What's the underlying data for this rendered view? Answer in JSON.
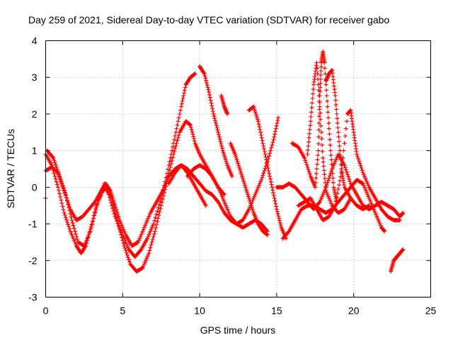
{
  "chart_data": {
    "type": "scatter",
    "title": "Day 259 of 2021, Sidereal Day-to-day VTEC variation (SDTVAR) for receiver gabo",
    "xlabel": "GPS time / hours",
    "ylabel": "SDTVAR / TECUs",
    "xlim": [
      0,
      25
    ],
    "ylim": [
      -3,
      4
    ],
    "xticks": [
      "0",
      "5",
      "10",
      "15",
      "20",
      "25"
    ],
    "yticks": [
      "-3",
      "-2",
      "-1",
      "0",
      "1",
      "2",
      "3",
      "4"
    ],
    "grid": true,
    "marker": "plus",
    "color": "#ff0000",
    "series": [
      {
        "name": "s1",
        "points": [
          [
            0.0,
            0.45
          ],
          [
            0.4,
            0.55
          ],
          [
            0.8,
            0.4
          ],
          [
            1.2,
            -0.1
          ],
          [
            1.6,
            -0.6
          ],
          [
            2.0,
            -0.9
          ],
          [
            2.4,
            -0.8
          ],
          [
            2.8,
            -0.6
          ],
          [
            3.2,
            -0.4
          ],
          [
            3.6,
            -0.1
          ],
          [
            3.9,
            0.1
          ],
          [
            4.2,
            -0.1
          ],
          [
            4.5,
            -0.5
          ],
          [
            4.8,
            -0.9
          ],
          [
            5.2,
            -1.3
          ],
          [
            5.6,
            -1.6
          ],
          [
            6.0,
            -1.5
          ],
          [
            6.4,
            -1.1
          ],
          [
            6.8,
            -0.7
          ],
          [
            7.2,
            -0.4
          ],
          [
            7.6,
            -0.1
          ],
          [
            8.0,
            0.3
          ],
          [
            8.4,
            0.5
          ],
          [
            8.8,
            0.6
          ],
          [
            9.2,
            0.4
          ],
          [
            9.6,
            0.1
          ],
          [
            10.0,
            -0.2
          ],
          [
            10.4,
            -0.5
          ]
        ]
      },
      {
        "name": "s2",
        "points": [
          [
            0.1,
            1.0
          ],
          [
            0.5,
            0.8
          ],
          [
            0.9,
            0.3
          ],
          [
            1.3,
            -0.2
          ],
          [
            1.7,
            -0.9
          ],
          [
            2.1,
            -1.5
          ],
          [
            2.5,
            -1.6
          ],
          [
            2.9,
            -1.2
          ],
          [
            3.3,
            -0.5
          ],
          [
            3.7,
            -0.1
          ],
          [
            4.0,
            0.0
          ],
          [
            4.3,
            -0.3
          ],
          [
            4.7,
            -1.0
          ],
          [
            5.1,
            -1.6
          ],
          [
            5.5,
            -2.1
          ],
          [
            5.9,
            -2.3
          ],
          [
            6.3,
            -2.2
          ],
          [
            6.7,
            -1.8
          ],
          [
            7.1,
            -1.2
          ],
          [
            7.5,
            -0.5
          ],
          [
            7.9,
            0.2
          ],
          [
            8.3,
            0.9
          ],
          [
            8.7,
            1.5
          ],
          [
            9.1,
            1.8
          ],
          [
            9.4,
            1.7
          ],
          [
            9.7,
            1.2
          ],
          [
            10.0,
            0.9
          ],
          [
            10.4,
            0.6
          ],
          [
            10.8,
            0.3
          ],
          [
            11.2,
            0.0
          ],
          [
            11.6,
            -0.2
          ]
        ]
      },
      {
        "name": "s3",
        "points": [
          [
            0.0,
            0.9
          ],
          [
            0.4,
            0.6
          ],
          [
            0.8,
            0.0
          ],
          [
            1.2,
            -0.7
          ],
          [
            1.6,
            -1.2
          ],
          [
            2.0,
            -1.6
          ],
          [
            2.3,
            -1.8
          ],
          [
            2.6,
            -1.6
          ],
          [
            3.0,
            -1.0
          ],
          [
            3.4,
            -0.4
          ],
          [
            3.8,
            0.1
          ],
          [
            4.1,
            -0.2
          ],
          [
            4.5,
            -0.8
          ],
          [
            5.0,
            -1.3
          ],
          [
            5.4,
            -1.7
          ],
          [
            5.8,
            -1.9
          ],
          [
            6.2,
            -1.7
          ],
          [
            6.6,
            -1.4
          ],
          [
            7.0,
            -1.0
          ],
          [
            7.5,
            -0.3
          ],
          [
            8.0,
            0.6
          ],
          [
            8.4,
            1.4
          ],
          [
            8.8,
            2.2
          ],
          [
            9.1,
            2.8
          ],
          [
            9.4,
            3.0
          ],
          [
            9.7,
            3.1
          ]
        ]
      },
      {
        "name": "s4",
        "points": [
          [
            8.0,
            0.1
          ],
          [
            8.4,
            0.4
          ],
          [
            8.8,
            0.6
          ],
          [
            9.2,
            0.5
          ],
          [
            9.6,
            0.3
          ],
          [
            10.0,
            0.1
          ],
          [
            10.4,
            -0.1
          ],
          [
            10.8,
            -0.2
          ],
          [
            11.2,
            -0.4
          ],
          [
            11.6,
            -0.7
          ],
          [
            12.0,
            -0.9
          ],
          [
            12.4,
            -1.0
          ],
          [
            12.8,
            -1.1
          ],
          [
            13.2,
            -1.0
          ],
          [
            13.6,
            -0.9
          ],
          [
            14.0,
            -1.0
          ],
          [
            14.4,
            -1.2
          ]
        ]
      },
      {
        "name": "s5",
        "points": [
          [
            10.0,
            3.3
          ],
          [
            10.3,
            3.1
          ],
          [
            10.6,
            2.6
          ],
          [
            10.9,
            2.0
          ],
          [
            11.2,
            1.5
          ],
          [
            11.5,
            1.0
          ],
          [
            11.8,
            0.6
          ],
          [
            12.1,
            0.3
          ]
        ]
      },
      {
        "name": "s6",
        "points": [
          [
            11.4,
            2.5
          ],
          [
            11.6,
            2.2
          ],
          [
            11.8,
            2.0
          ]
        ]
      },
      {
        "name": "s7",
        "points": [
          [
            9.2,
            0.3
          ],
          [
            9.6,
            0.5
          ],
          [
            10.0,
            0.6
          ],
          [
            10.4,
            0.5
          ],
          [
            10.8,
            0.3
          ],
          [
            11.2,
            0.0
          ],
          [
            11.6,
            -0.4
          ],
          [
            12.0,
            -0.8
          ],
          [
            12.4,
            -1.0
          ],
          [
            12.8,
            -0.9
          ],
          [
            13.2,
            -0.6
          ],
          [
            13.6,
            -0.2
          ],
          [
            14.0,
            0.2
          ],
          [
            14.4,
            0.7
          ],
          [
            14.8,
            1.3
          ],
          [
            15.1,
            1.9
          ]
        ]
      },
      {
        "name": "s8",
        "points": [
          [
            12.0,
            1.2
          ],
          [
            12.3,
            0.9
          ],
          [
            12.6,
            0.5
          ],
          [
            12.9,
            0.1
          ],
          [
            13.2,
            -0.3
          ],
          [
            13.5,
            -0.7
          ],
          [
            13.8,
            -1.0
          ],
          [
            14.1,
            -1.2
          ],
          [
            14.4,
            -1.3
          ]
        ]
      },
      {
        "name": "s9",
        "points": [
          [
            13.2,
            2.1
          ],
          [
            13.5,
            2.2
          ],
          [
            13.8,
            1.8
          ],
          [
            14.1,
            1.2
          ],
          [
            14.4,
            0.6
          ],
          [
            14.7,
            0.0
          ],
          [
            15.0,
            -0.6
          ],
          [
            15.3,
            -1.1
          ],
          [
            15.6,
            -1.4
          ]
        ]
      },
      {
        "name": "s10",
        "points": [
          [
            15.4,
            -1.4
          ],
          [
            15.8,
            -1.2
          ],
          [
            16.2,
            -0.9
          ],
          [
            16.6,
            -0.6
          ],
          [
            17.0,
            -0.5
          ],
          [
            17.4,
            -0.5
          ],
          [
            17.8,
            -0.6
          ],
          [
            18.2,
            -0.7
          ],
          [
            18.6,
            -0.6
          ],
          [
            19.0,
            -0.4
          ],
          [
            19.4,
            -0.2
          ],
          [
            19.8,
            0.0
          ],
          [
            20.2,
            0.2
          ],
          [
            20.6,
            0.1
          ],
          [
            21.0,
            -0.3
          ],
          [
            21.4,
            -0.7
          ],
          [
            21.8,
            -1.1
          ],
          [
            22.0,
            -1.2
          ]
        ]
      },
      {
        "name": "s11",
        "points": [
          [
            15.0,
            0.0
          ],
          [
            15.4,
            0.0
          ],
          [
            15.8,
            0.1
          ],
          [
            16.2,
            0.0
          ],
          [
            16.6,
            -0.2
          ],
          [
            17.0,
            -0.4
          ],
          [
            17.4,
            -0.6
          ],
          [
            17.8,
            -0.4
          ],
          [
            18.2,
            0.0
          ],
          [
            18.6,
            0.5
          ],
          [
            19.0,
            0.9
          ],
          [
            19.4,
            0.6
          ],
          [
            19.8,
            0.1
          ],
          [
            20.2,
            -0.2
          ],
          [
            20.6,
            -0.5
          ],
          [
            21.0,
            -0.6
          ],
          [
            21.4,
            -0.5
          ],
          [
            21.8,
            -0.4
          ],
          [
            22.2,
            -0.5
          ],
          [
            22.6,
            -0.6
          ],
          [
            23.0,
            -0.8
          ],
          [
            23.2,
            -0.7
          ]
        ]
      },
      {
        "name": "s12",
        "points": [
          [
            16.0,
            1.2
          ],
          [
            16.4,
            1.1
          ],
          [
            16.8,
            0.8
          ],
          [
            17.2,
            0.3
          ],
          [
            17.5,
            0.0
          ],
          [
            17.7,
            1.0
          ],
          [
            17.8,
            2.5
          ],
          [
            17.9,
            3.4
          ],
          [
            18.0,
            3.7
          ],
          [
            18.1,
            3.4
          ],
          [
            18.3,
            2.2
          ],
          [
            18.5,
            1.0
          ],
          [
            18.7,
            0.0
          ],
          [
            18.9,
            -0.4
          ]
        ]
      },
      {
        "name": "s13",
        "points": [
          [
            17.0,
            0.9
          ],
          [
            17.2,
            1.8
          ],
          [
            17.4,
            2.8
          ],
          [
            17.6,
            3.4
          ],
          [
            17.8,
            2.2
          ],
          [
            18.0,
            0.8
          ],
          [
            18.2,
            -0.1
          ],
          [
            18.6,
            -0.5
          ],
          [
            19.0,
            -0.7
          ],
          [
            19.4,
            -0.6
          ],
          [
            19.8,
            -0.3
          ]
        ]
      },
      {
        "name": "s14",
        "points": [
          [
            18.2,
            2.9
          ],
          [
            18.4,
            3.1
          ],
          [
            18.6,
            3.2
          ],
          [
            18.8,
            2.5
          ],
          [
            19.0,
            1.5
          ],
          [
            19.2,
            0.5
          ],
          [
            19.4,
            0.0
          ],
          [
            19.8,
            -0.3
          ],
          [
            20.2,
            -0.5
          ],
          [
            20.6,
            -0.6
          ],
          [
            21.0,
            -0.5
          ]
        ]
      },
      {
        "name": "s15",
        "points": [
          [
            16.4,
            -0.5
          ],
          [
            16.8,
            -0.4
          ],
          [
            17.2,
            -0.3
          ],
          [
            17.6,
            -0.6
          ],
          [
            18.0,
            -0.9
          ],
          [
            18.4,
            -0.8
          ],
          [
            18.8,
            -0.5
          ],
          [
            19.2,
            0.4
          ],
          [
            19.6,
            2.0
          ],
          [
            19.8,
            2.1
          ],
          [
            20.0,
            1.5
          ],
          [
            20.2,
            0.9
          ],
          [
            20.6,
            0.4
          ],
          [
            21.0,
            0.0
          ],
          [
            21.4,
            -0.3
          ],
          [
            21.8,
            -0.6
          ],
          [
            22.2,
            -0.8
          ],
          [
            22.6,
            -0.9
          ],
          [
            23.0,
            -0.9
          ]
        ]
      },
      {
        "name": "s16",
        "points": [
          [
            22.4,
            -2.3
          ],
          [
            22.6,
            -2.0
          ],
          [
            22.8,
            -1.9
          ],
          [
            23.0,
            -1.8
          ],
          [
            23.2,
            -1.7
          ]
        ]
      },
      {
        "name": "s17",
        "points": [
          [
            0.0,
            -0.3
          ]
        ]
      }
    ]
  }
}
